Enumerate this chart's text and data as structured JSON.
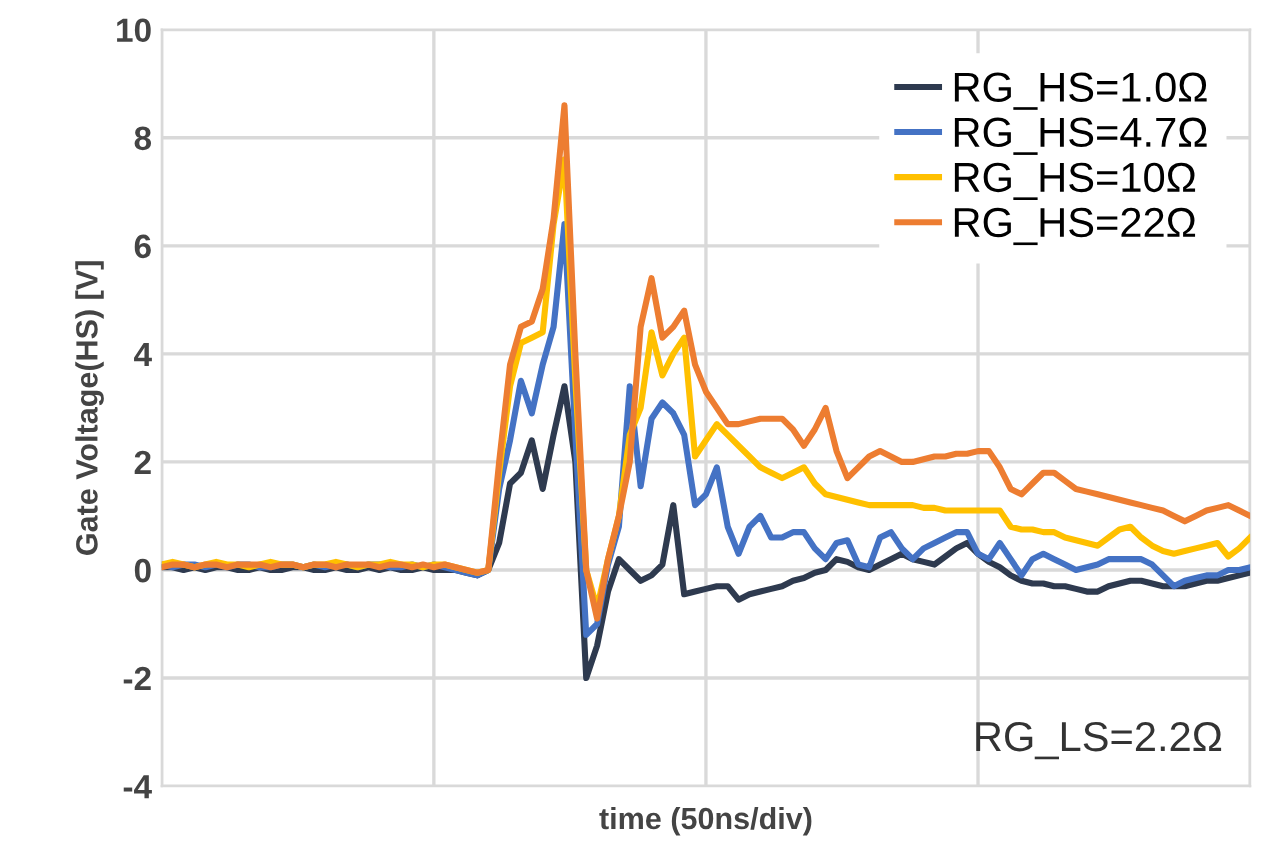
{
  "chart_data": {
    "type": "line",
    "xlabel": "time (50ns/div)",
    "ylabel": "Gate Voltage(HS) [V]",
    "categories": [
      null,
      null,
      null,
      null,
      null,
      null,
      null,
      null,
      null,
      null,
      null,
      null,
      null,
      null,
      null,
      null,
      null,
      null,
      null,
      null,
      null,
      null,
      null,
      null,
      null,
      null,
      null,
      null,
      null,
      null,
      null,
      null,
      null,
      null,
      null,
      null,
      null,
      null,
      null,
      null,
      null,
      null,
      null,
      null,
      null,
      null,
      null,
      null,
      null,
      null,
      null,
      null,
      null,
      null,
      null,
      null,
      null,
      null,
      null,
      null,
      null,
      null,
      null,
      null,
      null,
      null,
      null,
      null,
      null,
      null,
      null,
      null,
      null,
      null,
      null,
      null,
      null,
      null,
      null,
      null,
      null,
      null,
      null,
      null,
      null,
      null,
      null,
      null,
      null,
      null,
      null,
      null,
      null,
      null,
      null,
      null,
      null,
      null,
      null,
      null,
      null
    ],
    "ylim": [
      -4,
      10
    ],
    "yticks": [
      -4,
      -2,
      0,
      2,
      4,
      6,
      8,
      10
    ],
    "grid": true,
    "legend": "top right",
    "marker": "none",
    "line_style": "solid",
    "annotations": [
      "RG_LS=2.2Ω"
    ],
    "series": [
      {
        "name": "RG_HS=1.0Ω",
        "color": "#2e3a4f",
        "values": [
          0.05,
          0.05,
          0,
          0.05,
          0,
          0.05,
          0.05,
          0,
          0,
          0.05,
          0,
          0,
          0.05,
          0.05,
          0,
          0,
          0.05,
          0,
          0,
          0.05,
          0,
          0.05,
          0,
          0,
          0.05,
          0,
          0,
          0,
          -0.05,
          -0.1,
          0,
          0.5,
          1.6,
          1.8,
          2.4,
          1.5,
          2.5,
          3.4,
          2.0,
          -2.0,
          -1.4,
          -0.4,
          0.2,
          0,
          -0.2,
          -0.1,
          0.1,
          1.2,
          -0.45,
          -0.4,
          -0.35,
          -0.3,
          -0.3,
          -0.55,
          -0.45,
          -0.4,
          -0.35,
          -0.3,
          -0.2,
          -0.15,
          -0.05,
          0,
          0.2,
          0.15,
          0.05,
          0,
          0.1,
          0.2,
          0.3,
          0.2,
          0.15,
          0.1,
          0.25,
          0.4,
          0.5,
          0.3,
          0.15,
          0.05,
          -0.1,
          -0.2,
          -0.25,
          -0.25,
          -0.3,
          -0.3,
          -0.35,
          -0.4,
          -0.4,
          -0.3,
          -0.25,
          -0.2,
          -0.2,
          -0.25,
          -0.3,
          -0.3,
          -0.3,
          -0.25,
          -0.2,
          -0.2,
          -0.15,
          -0.1,
          -0.05
        ]
      },
      {
        "name": "RG_HS=4.7Ω",
        "color": "#4472c4",
        "values": [
          0.1,
          0.05,
          0.1,
          0.1,
          0.05,
          0.1,
          0.05,
          0.1,
          0.1,
          0.05,
          0.05,
          0.1,
          0.1,
          0.05,
          0.1,
          0.05,
          0.1,
          0.1,
          0.05,
          0.1,
          0.1,
          0.05,
          0.05,
          0.1,
          0.05,
          0.1,
          0.05,
          0,
          -0.05,
          -0.1,
          0,
          1.5,
          2.4,
          3.5,
          2.9,
          3.8,
          4.5,
          6.4,
          2.5,
          -1.2,
          -1.0,
          0.1,
          0.8,
          3.4,
          1.55,
          2.8,
          3.1,
          2.9,
          2.5,
          1.2,
          1.4,
          1.9,
          0.8,
          0.3,
          0.8,
          1.0,
          0.6,
          0.6,
          0.7,
          0.7,
          0.4,
          0.2,
          0.5,
          0.55,
          0.1,
          0.05,
          0.6,
          0.7,
          0.4,
          0.2,
          0.4,
          0.5,
          0.6,
          0.7,
          0.7,
          0.3,
          0.2,
          0.5,
          0.2,
          -0.1,
          0.2,
          0.3,
          0.2,
          0.1,
          0,
          0.05,
          0.1,
          0.2,
          0.2,
          0.2,
          0.2,
          0.1,
          -0.1,
          -0.3,
          -0.2,
          -0.15,
          -0.1,
          -0.1,
          0,
          0,
          0.05
        ]
      },
      {
        "name": "RG_HS=10Ω",
        "color": "#ffc000",
        "values": [
          0.1,
          0.15,
          0.1,
          0.05,
          0.1,
          0.15,
          0.1,
          0.1,
          0.05,
          0.1,
          0.15,
          0.1,
          0.1,
          0.05,
          0.1,
          0.1,
          0.15,
          0.1,
          0.05,
          0.1,
          0.1,
          0.15,
          0.1,
          0.1,
          0.05,
          0.1,
          0.1,
          0.05,
          0,
          -0.05,
          0,
          1.8,
          3.4,
          4.2,
          4.3,
          4.4,
          6.4,
          7.6,
          3.5,
          0,
          -0.7,
          0.2,
          1.0,
          2.5,
          3.0,
          4.4,
          3.6,
          4.0,
          4.3,
          2.1,
          2.4,
          2.7,
          2.5,
          2.3,
          2.1,
          1.9,
          1.8,
          1.7,
          1.8,
          1.9,
          1.6,
          1.4,
          1.35,
          1.3,
          1.25,
          1.2,
          1.2,
          1.2,
          1.2,
          1.2,
          1.15,
          1.15,
          1.1,
          1.1,
          1.1,
          1.1,
          1.1,
          1.1,
          0.8,
          0.75,
          0.75,
          0.7,
          0.7,
          0.6,
          0.55,
          0.5,
          0.45,
          0.6,
          0.75,
          0.8,
          0.6,
          0.45,
          0.35,
          0.3,
          0.35,
          0.4,
          0.45,
          0.5,
          0.25,
          0.4,
          0.6
        ]
      },
      {
        "name": "RG_HS=22Ω",
        "color": "#ed7d31",
        "values": [
          0.05,
          0.1,
          0.1,
          0.05,
          0.1,
          0.1,
          0.05,
          0.1,
          0.1,
          0.1,
          0.05,
          0.1,
          0.1,
          0.05,
          0.1,
          0.1,
          0.05,
          0.1,
          0.1,
          0.1,
          0.05,
          0.1,
          0.1,
          0.05,
          0.1,
          0.05,
          0.1,
          0.05,
          0,
          -0.05,
          0,
          2.0,
          3.8,
          4.5,
          4.6,
          5.2,
          6.5,
          8.6,
          4.0,
          0,
          -0.9,
          0.2,
          1.0,
          2.0,
          4.5,
          5.4,
          4.3,
          4.5,
          4.8,
          3.8,
          3.3,
          3.0,
          2.7,
          2.7,
          2.75,
          2.8,
          2.8,
          2.8,
          2.6,
          2.3,
          2.6,
          3.0,
          2.2,
          1.7,
          1.9,
          2.1,
          2.2,
          2.1,
          2.0,
          2.0,
          2.05,
          2.1,
          2.1,
          2.15,
          2.15,
          2.2,
          2.2,
          1.9,
          1.5,
          1.4,
          1.6,
          1.8,
          1.8,
          1.65,
          1.5,
          1.45,
          1.4,
          1.35,
          1.3,
          1.25,
          1.2,
          1.15,
          1.1,
          1.0,
          0.9,
          1.0,
          1.1,
          1.15,
          1.2,
          1.1,
          1.0
        ]
      }
    ]
  }
}
